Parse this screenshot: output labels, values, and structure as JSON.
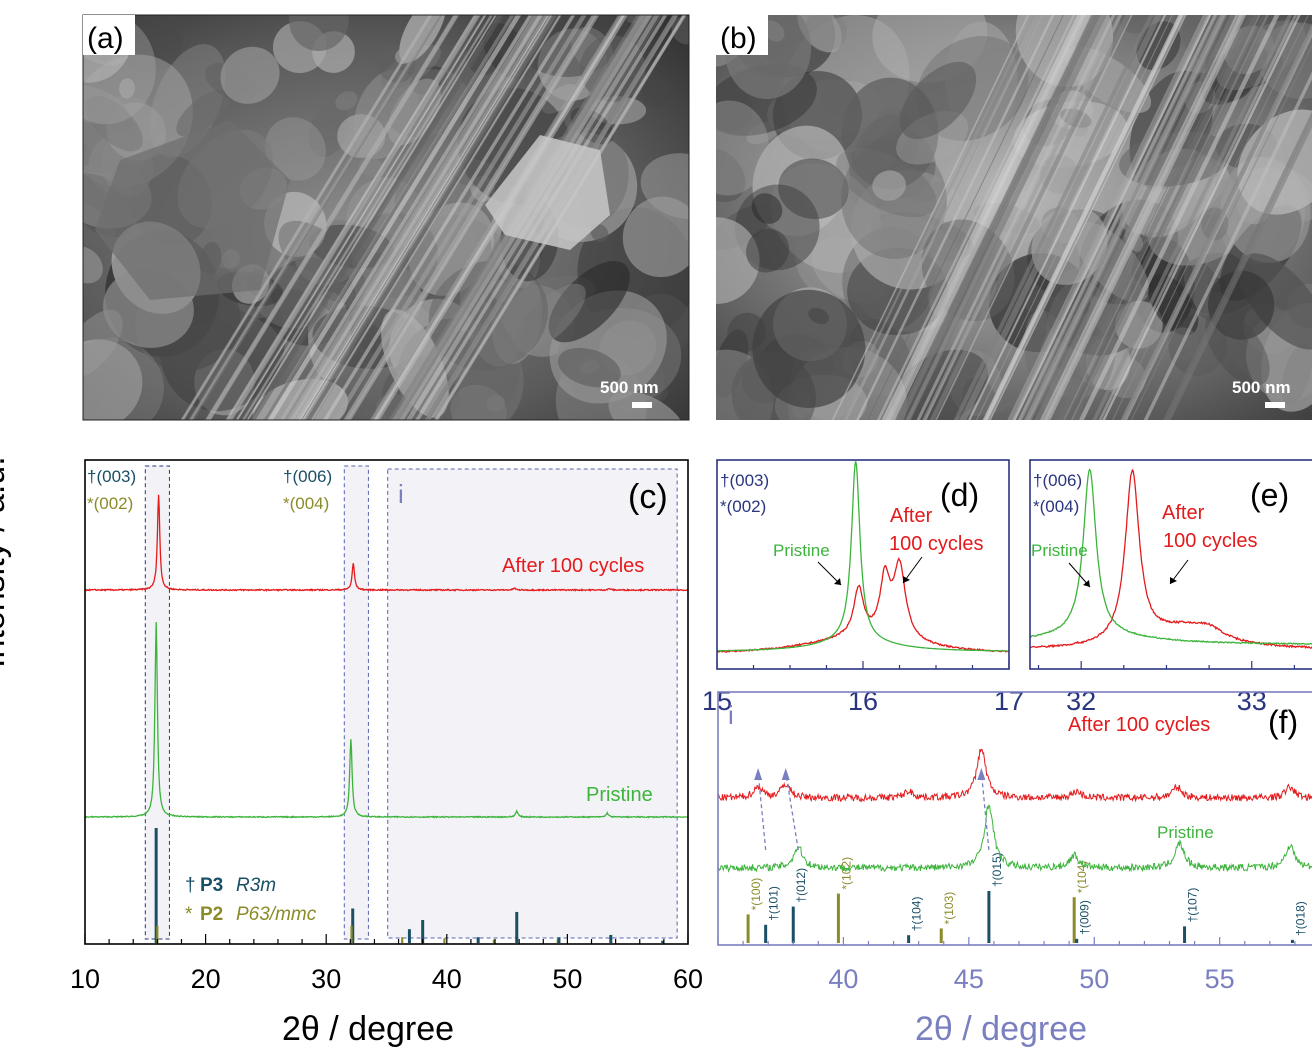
{
  "panels": {
    "a": {
      "label": "(a)",
      "scale_bar": "500 nm"
    },
    "b": {
      "label": "(b)",
      "scale_bar": "500 nm"
    }
  },
  "shared": {
    "ylabel": "Intensity / a.u.",
    "xlabel": "2θ / degree"
  },
  "colors": {
    "after": "#e41a1c",
    "pristine": "#3cb43c",
    "p3": "#1a4f66",
    "p2": "#8b8b2a",
    "navy": "#2a3580",
    "lavender": "#7a7fc0"
  },
  "chart_data": [
    {
      "id": "c",
      "type": "line",
      "label": "(c)",
      "xlim": [
        10,
        60
      ],
      "xticks": [
        10,
        20,
        30,
        40,
        50,
        60
      ],
      "xlabel": "2θ / degree",
      "ylabel": "Intensity / a.u.",
      "region_label": "i",
      "series": [
        {
          "name": "After 100 cycles",
          "peaks": [
            [
              16.1,
              1.0
            ],
            [
              32.25,
              0.28
            ],
            [
              45.6,
              0.02
            ],
            [
              53.5,
              0.015
            ]
          ]
        },
        {
          "name": "Pristine",
          "peaks": [
            [
              15.9,
              1.0
            ],
            [
              32.05,
              0.4
            ],
            [
              45.8,
              0.03
            ],
            [
              53.3,
              0.02
            ]
          ]
        }
      ],
      "peak_annotations": [
        {
          "p3": "†(003)",
          "p2": "*(002)",
          "x": 16
        },
        {
          "p3": "†(006)",
          "p2": "*(004)",
          "x": 32.2
        }
      ],
      "legend": [
        {
          "mark": "†",
          "phase": "P3",
          "space_group": "R3m"
        },
        {
          "mark": "*",
          "phase": "P2",
          "space_group": "P63/mmc"
        }
      ],
      "reference_sticks": [
        {
          "x": 15.9,
          "h": 1.0,
          "phase": "P3"
        },
        {
          "x": 16.0,
          "h": 0.15,
          "phase": "P2"
        },
        {
          "x": 32.2,
          "h": 0.3,
          "phase": "P3"
        },
        {
          "x": 32.1,
          "h": 0.15,
          "phase": "P2"
        },
        {
          "x": 36.3,
          "h": 0.05,
          "phase": "P2"
        },
        {
          "x": 36.9,
          "h": 0.12,
          "phase": "P3"
        },
        {
          "x": 38.0,
          "h": 0.2,
          "phase": "P3"
        },
        {
          "x": 39.8,
          "h": 0.04,
          "phase": "P2"
        },
        {
          "x": 42.6,
          "h": 0.05,
          "phase": "P3"
        },
        {
          "x": 43.9,
          "h": 0.03,
          "phase": "P2"
        },
        {
          "x": 45.8,
          "h": 0.27,
          "phase": "P3"
        },
        {
          "x": 49.2,
          "h": 0.03,
          "phase": "P2"
        },
        {
          "x": 49.3,
          "h": 0.05,
          "phase": "P3"
        },
        {
          "x": 53.6,
          "h": 0.07,
          "phase": "P3"
        },
        {
          "x": 57.9,
          "h": 0.02,
          "phase": "P3"
        }
      ]
    },
    {
      "id": "d",
      "type": "line",
      "label": "(d)",
      "xlim": [
        15,
        17
      ],
      "xticks": [
        15,
        16,
        17
      ],
      "annotations": [
        "†(003)",
        "*(002)",
        "Pristine",
        "After",
        "100 cycles"
      ],
      "series": [
        {
          "name": "Pristine",
          "peaks": [
            [
              15.95,
              1.0
            ]
          ]
        },
        {
          "name": "After 100 cycles",
          "peaks": [
            [
              15.97,
              0.27
            ],
            [
              16.15,
              0.33
            ],
            [
              16.25,
              0.41
            ]
          ]
        }
      ]
    },
    {
      "id": "e",
      "type": "line",
      "label": "(e)",
      "xlim": [
        31.7,
        33.4
      ],
      "xticks": [
        32,
        33
      ],
      "annotations": [
        "†(006)",
        "*(004)",
        "Pristine",
        "After",
        "100 cycles"
      ],
      "series": [
        {
          "name": "Pristine",
          "peaks": [
            [
              32.05,
              1.0
            ]
          ]
        },
        {
          "name": "After 100 cycles",
          "peaks": [
            [
              32.3,
              1.0
            ],
            [
              32.75,
              0.1
            ]
          ]
        }
      ]
    },
    {
      "id": "f",
      "type": "line",
      "label": "(f)",
      "region_label": "i",
      "xlim": [
        35,
        59
      ],
      "xticks": [
        40,
        45,
        50,
        55
      ],
      "xlabel": "2θ / degree",
      "series": [
        {
          "name": "After 100 cycles",
          "peaks": [
            [
              36.6,
              0.2
            ],
            [
              37.7,
              0.25
            ],
            [
              42.6,
              0.12
            ],
            [
              45.5,
              0.9
            ],
            [
              49.3,
              0.12
            ],
            [
              53.3,
              0.2
            ],
            [
              57.8,
              0.2
            ]
          ]
        },
        {
          "name": "Pristine",
          "peaks": [
            [
              38.2,
              0.3
            ],
            [
              45.8,
              0.9
            ],
            [
              49.2,
              0.18
            ],
            [
              53.4,
              0.35
            ],
            [
              57.8,
              0.32
            ]
          ]
        }
      ],
      "reference_sticks": [
        {
          "x": 36.2,
          "h": 0.55,
          "label": "*(100)",
          "phase": "P2"
        },
        {
          "x": 36.9,
          "h": 0.35,
          "label": "†(101)",
          "phase": "P3"
        },
        {
          "x": 38.0,
          "h": 0.7,
          "label": "†(012)",
          "phase": "P3"
        },
        {
          "x": 39.8,
          "h": 0.95,
          "label": "*(102)",
          "phase": "P2"
        },
        {
          "x": 42.6,
          "h": 0.15,
          "label": "†(104)",
          "phase": "P3"
        },
        {
          "x": 43.9,
          "h": 0.28,
          "label": "*(103)",
          "phase": "P2"
        },
        {
          "x": 45.8,
          "h": 1.0,
          "label": "†(015)",
          "phase": "P3"
        },
        {
          "x": 49.2,
          "h": 0.88,
          "label": "*(104)",
          "phase": "P2"
        },
        {
          "x": 49.3,
          "h": 0.08,
          "label": "†(009)",
          "phase": "P3"
        },
        {
          "x": 53.6,
          "h": 0.32,
          "label": "†(107)",
          "phase": "P3"
        },
        {
          "x": 57.9,
          "h": 0.06,
          "label": "†(018)",
          "phase": "P3"
        }
      ]
    }
  ]
}
